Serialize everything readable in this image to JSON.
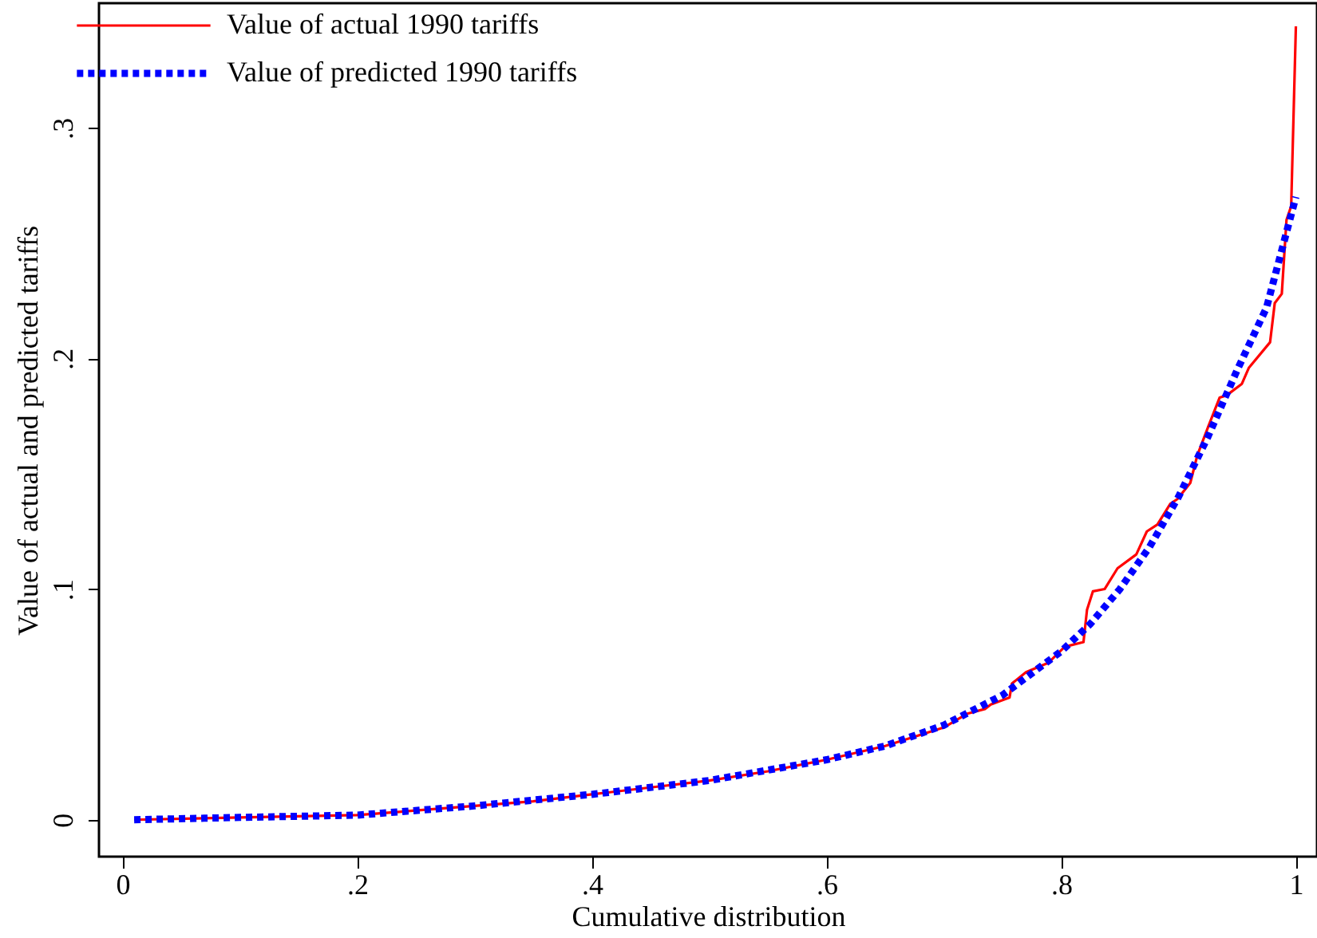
{
  "chart_data": {
    "type": "line",
    "xlabel": "Cumulative distribution",
    "ylabel": "Value of actual and predicted tariffs",
    "xlim": [
      -0.02,
      1.018
    ],
    "ylim": [
      -0.016,
      0.354
    ],
    "xticks": [
      {
        "value": 0,
        "label": "0"
      },
      {
        "value": 0.2,
        "label": ".2"
      },
      {
        "value": 0.4,
        "label": ".4"
      },
      {
        "value": 0.6,
        "label": ".6"
      },
      {
        "value": 0.8,
        "label": ".8"
      },
      {
        "value": 1,
        "label": "1"
      }
    ],
    "yticks": [
      {
        "value": 0,
        "label": "0"
      },
      {
        "value": 0.1,
        "label": ".1"
      },
      {
        "value": 0.2,
        "label": ".2"
      },
      {
        "value": 0.3,
        "label": ".3"
      }
    ],
    "grid": false,
    "legend": "top left",
    "marker": "none",
    "series": [
      {
        "name": "Value of actual 1990 tariffs",
        "color": "#ff0000",
        "line_style": "solid",
        "x": [
          0.01,
          0.1,
          0.2,
          0.25,
          0.3,
          0.35,
          0.4,
          0.45,
          0.5,
          0.55,
          0.6,
          0.65,
          0.7,
          0.72,
          0.735,
          0.74,
          0.756,
          0.758,
          0.77,
          0.789,
          0.803,
          0.819,
          0.822,
          0.827,
          0.837,
          0.848,
          0.864,
          0.873,
          0.882,
          0.893,
          0.899,
          0.91,
          0.916,
          0.925,
          0.935,
          0.941,
          0.954,
          0.96,
          0.978,
          0.982,
          0.988,
          0.992,
          0.996,
          1.0
        ],
        "values": [
          0,
          0.001,
          0.002,
          0.004,
          0.006,
          0.008,
          0.011,
          0.014,
          0.017,
          0.021,
          0.026,
          0.032,
          0.04,
          0.046,
          0.048,
          0.05,
          0.053,
          0.059,
          0.064,
          0.068,
          0.075,
          0.077,
          0.091,
          0.099,
          0.1,
          0.109,
          0.115,
          0.125,
          0.128,
          0.137,
          0.139,
          0.146,
          0.158,
          0.17,
          0.183,
          0.184,
          0.189,
          0.196,
          0.207,
          0.224,
          0.228,
          0.26,
          0.266,
          0.344
        ]
      },
      {
        "name": "Value of predicted 1990 tariffs",
        "color": "#0000ff",
        "line_style": "dotted",
        "x": [
          0.01,
          0.1,
          0.2,
          0.3,
          0.4,
          0.5,
          0.6,
          0.65,
          0.7,
          0.75,
          0.8,
          0.825,
          0.85,
          0.875,
          0.9,
          0.925,
          0.95,
          0.975,
          1.0
        ],
        "values": [
          0,
          0.001,
          0.002,
          0.006,
          0.011,
          0.017,
          0.026,
          0.032,
          0.041,
          0.054,
          0.073,
          0.085,
          0.1,
          0.118,
          0.14,
          0.166,
          0.195,
          0.222,
          0.27
        ]
      }
    ]
  }
}
